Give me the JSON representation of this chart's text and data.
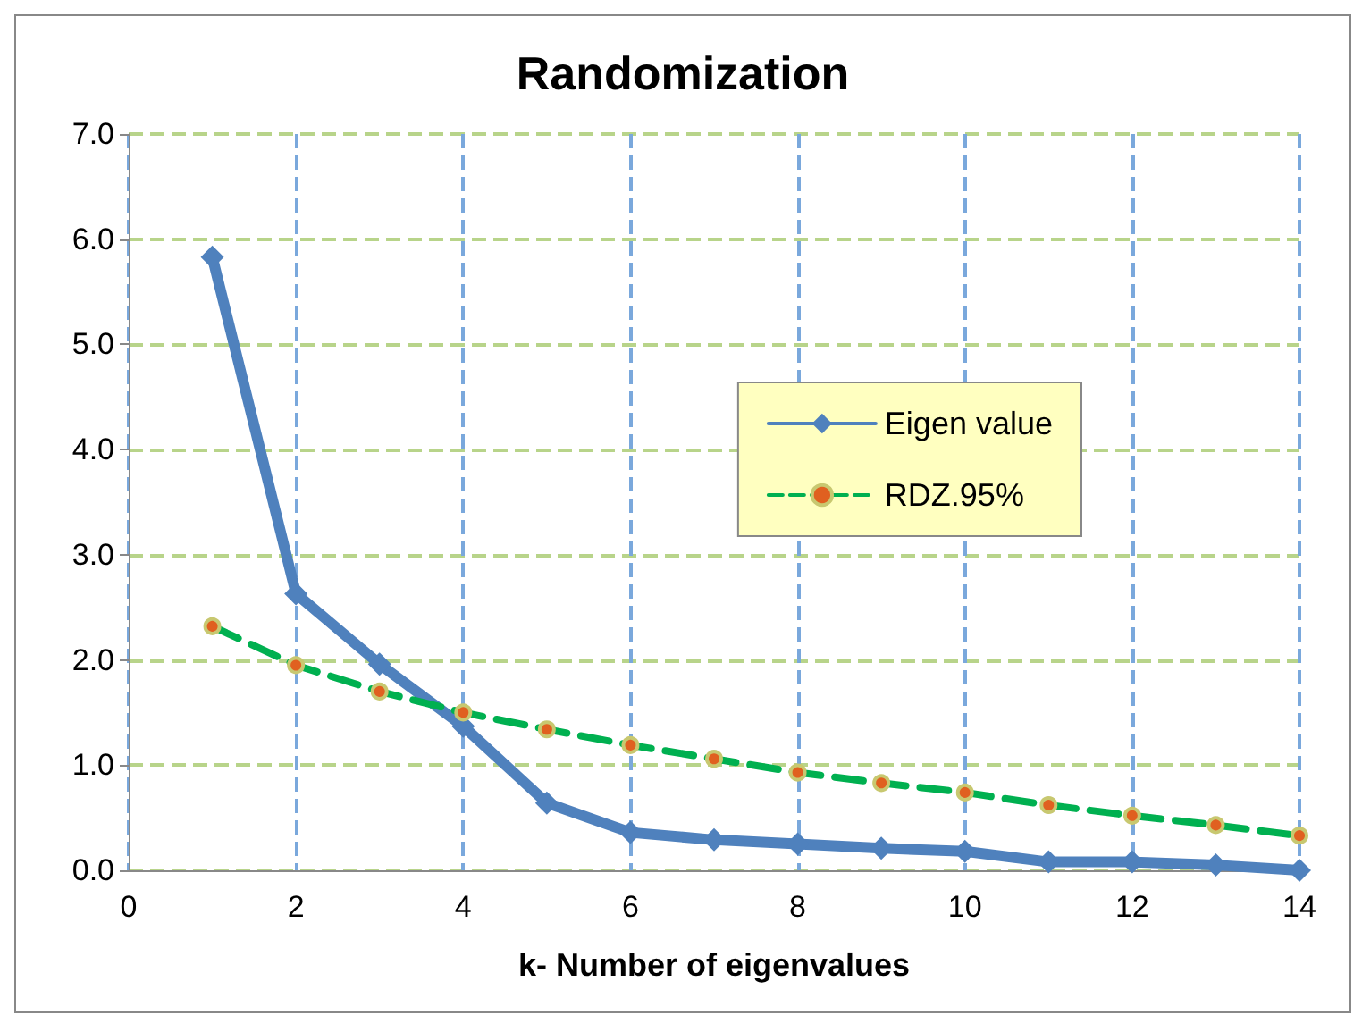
{
  "chart_data": {
    "type": "line",
    "title": "Randomization",
    "xlabel": "k- Number of eigenvalues",
    "x": [
      1,
      2,
      3,
      4,
      5,
      6,
      7,
      8,
      9,
      10,
      11,
      12,
      13,
      14
    ],
    "series": [
      {
        "name": "Eigen value",
        "color": "#4f81bd",
        "marker": "diamond",
        "line_style": "solid",
        "values": [
          5.83,
          2.63,
          1.96,
          1.37,
          0.64,
          0.36,
          0.29,
          0.25,
          0.21,
          0.18,
          0.08,
          0.08,
          0.05,
          0.0
        ]
      },
      {
        "name": "RDZ.95%",
        "color": "#00b050",
        "marker": "circle",
        "line_style": "dashed",
        "values": [
          2.32,
          1.95,
          1.7,
          1.5,
          1.34,
          1.19,
          1.06,
          0.93,
          0.83,
          0.74,
          0.62,
          0.52,
          0.43,
          0.33
        ]
      }
    ],
    "xlim": [
      0,
      14
    ],
    "xticks": [
      0,
      2,
      4,
      6,
      8,
      10,
      12,
      14
    ],
    "ylim": [
      0,
      7
    ],
    "yticks": [
      {
        "value": 0,
        "label": "0.0"
      },
      {
        "value": 1,
        "label": "1.0"
      },
      {
        "value": 2,
        "label": "2.0"
      },
      {
        "value": 3,
        "label": "3.0"
      },
      {
        "value": 4,
        "label": "4.0"
      },
      {
        "value": 5,
        "label": "5.0"
      },
      {
        "value": 6,
        "label": "6.0"
      },
      {
        "value": 7,
        "label": "7.0"
      }
    ],
    "grid": true,
    "legend": "right"
  }
}
